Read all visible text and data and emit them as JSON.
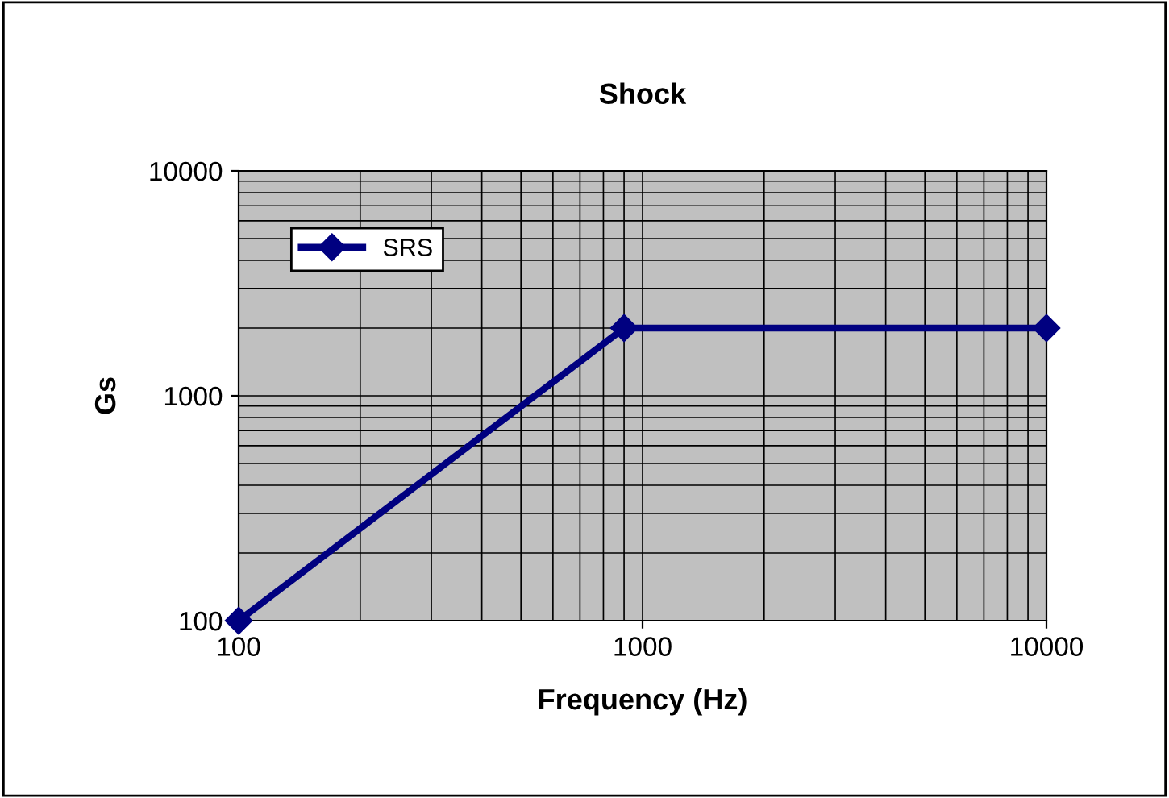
{
  "chart_data": {
    "type": "line",
    "title": "Shock",
    "xlabel": "Frequency (Hz)",
    "ylabel": "Gs",
    "x": [
      100,
      900,
      10000
    ],
    "series": [
      {
        "name": "SRS",
        "color": "#000080",
        "values": [
          100,
          2000,
          2000
        ]
      }
    ],
    "log": "xy",
    "xlim": [
      100,
      10000
    ],
    "ylim": [
      100,
      10000
    ],
    "xticks": [
      100,
      1000,
      10000
    ],
    "yticks": [
      100,
      1000,
      10000
    ],
    "grid": true,
    "legend": "top left",
    "marker": "diamond",
    "line_style": "solid"
  }
}
